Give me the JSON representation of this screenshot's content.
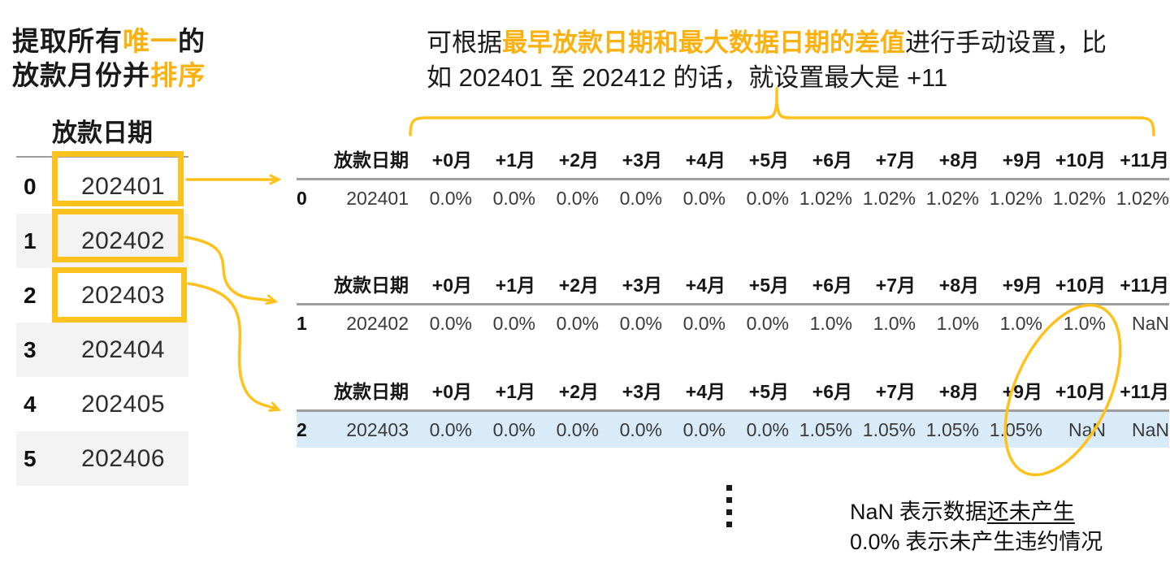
{
  "colors": {
    "accent_text": "#FBB10F",
    "accent_shape": "#FFC21C",
    "highlight_row_blue": "#D9EBF8",
    "stripe_gray": "#F3F3F3",
    "rule_gray": "#9E9E9E"
  },
  "annotation_left": {
    "line1_pre": "提取所有",
    "line1_hl": "唯一",
    "line1_post": "的",
    "line2_pre": "放款月份并",
    "line2_hl": "排序"
  },
  "annotation_top": {
    "line1_pre": "可根据",
    "line1_hl": "最早放款日期和最大数据日期的差值",
    "line1_post": "进行手动设置，比",
    "line2": "如 202401 至 202412 的话，就设置最大是 +11"
  },
  "left_table": {
    "header": "放款日期",
    "rows": [
      {
        "index": "0",
        "value": "202401"
      },
      {
        "index": "1",
        "value": "202402"
      },
      {
        "index": "2",
        "value": "202403"
      },
      {
        "index": "3",
        "value": "202404"
      },
      {
        "index": "4",
        "value": "202405"
      },
      {
        "index": "5",
        "value": "202406"
      }
    ]
  },
  "vintage_tables": [
    {
      "columns": [
        "放款日期",
        "+0月",
        "+1月",
        "+2月",
        "+3月",
        "+4月",
        "+5月",
        "+6月",
        "+7月",
        "+8月",
        "+9月",
        "+10月",
        "+11月"
      ],
      "row": {
        "index": "0",
        "date": "202401",
        "values": [
          "0.0%",
          "0.0%",
          "0.0%",
          "0.0%",
          "0.0%",
          "0.0%",
          "1.02%",
          "1.02%",
          "1.02%",
          "1.02%",
          "1.02%",
          "1.02%"
        ]
      },
      "row_highlighted": false
    },
    {
      "columns": [
        "放款日期",
        "+0月",
        "+1月",
        "+2月",
        "+3月",
        "+4月",
        "+5月",
        "+6月",
        "+7月",
        "+8月",
        "+9月",
        "+10月",
        "+11月"
      ],
      "row": {
        "index": "1",
        "date": "202402",
        "values": [
          "0.0%",
          "0.0%",
          "0.0%",
          "0.0%",
          "0.0%",
          "0.0%",
          "1.0%",
          "1.0%",
          "1.0%",
          "1.0%",
          "1.0%",
          "NaN"
        ]
      },
      "row_highlighted": false
    },
    {
      "columns": [
        "放款日期",
        "+0月",
        "+1月",
        "+2月",
        "+3月",
        "+4月",
        "+5月",
        "+6月",
        "+7月",
        "+8月",
        "+9月",
        "+10月",
        "+11月"
      ],
      "row": {
        "index": "2",
        "date": "202403",
        "values": [
          "0.0%",
          "0.0%",
          "0.0%",
          "0.0%",
          "0.0%",
          "0.0%",
          "1.05%",
          "1.05%",
          "1.05%",
          "1.05%",
          "NaN",
          "NaN"
        ]
      },
      "row_highlighted": true
    }
  ],
  "notes": {
    "line1_latin": "NaN",
    "line1_mid": " 表示数据",
    "line1_underlined": "还未产生",
    "line2_latin": "0.0%",
    "line2_rest": " 表示未产生违约情况"
  },
  "ellipsis_dots": [
    0,
    0,
    0,
    0
  ]
}
